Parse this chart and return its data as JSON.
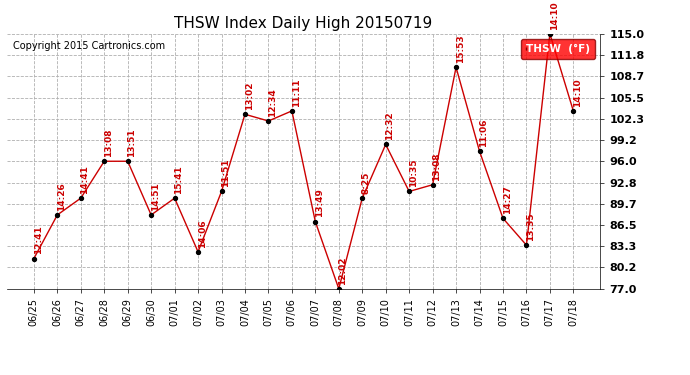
{
  "title": "THSW Index Daily High 20150719",
  "copyright": "Copyright 2015 Cartronics.com",
  "legend_label": "THSW  (°F)",
  "dates": [
    "06/25",
    "06/26",
    "06/27",
    "06/28",
    "06/29",
    "06/30",
    "07/01",
    "07/02",
    "07/03",
    "07/04",
    "07/05",
    "07/06",
    "07/07",
    "07/08",
    "07/09",
    "07/10",
    "07/11",
    "07/12",
    "07/13",
    "07/14",
    "07/15",
    "07/16",
    "07/17",
    "07/18"
  ],
  "values": [
    81.5,
    88.0,
    90.5,
    96.0,
    96.0,
    88.0,
    90.5,
    82.5,
    91.5,
    103.0,
    102.0,
    103.5,
    87.0,
    77.0,
    90.5,
    98.5,
    91.5,
    92.5,
    110.0,
    97.5,
    87.5,
    83.5,
    115.0,
    103.5
  ],
  "annotations": [
    "12:41",
    "14:26",
    "14:41",
    "13:08",
    "13:51",
    "14:51",
    "15:41",
    "14:06",
    "11:51",
    "13:02",
    "12:34",
    "11:11",
    "13:49",
    "12:02",
    "8:25",
    "12:32",
    "10:35",
    "13:08",
    "15:53",
    "11:06",
    "14:27",
    "13:35",
    "14:10",
    "14:10"
  ],
  "ylim": [
    77.0,
    115.0
  ],
  "yticks": [
    77.0,
    80.2,
    83.3,
    86.5,
    89.7,
    92.8,
    96.0,
    99.2,
    102.3,
    105.5,
    108.7,
    111.8,
    115.0
  ],
  "line_color": "#cc0000",
  "marker_color": "#000000",
  "background_color": "#ffffff",
  "grid_color": "#b0b0b0",
  "title_fontsize": 11,
  "annotation_fontsize": 6.5,
  "axis_fontsize": 7,
  "copyright_fontsize": 7
}
